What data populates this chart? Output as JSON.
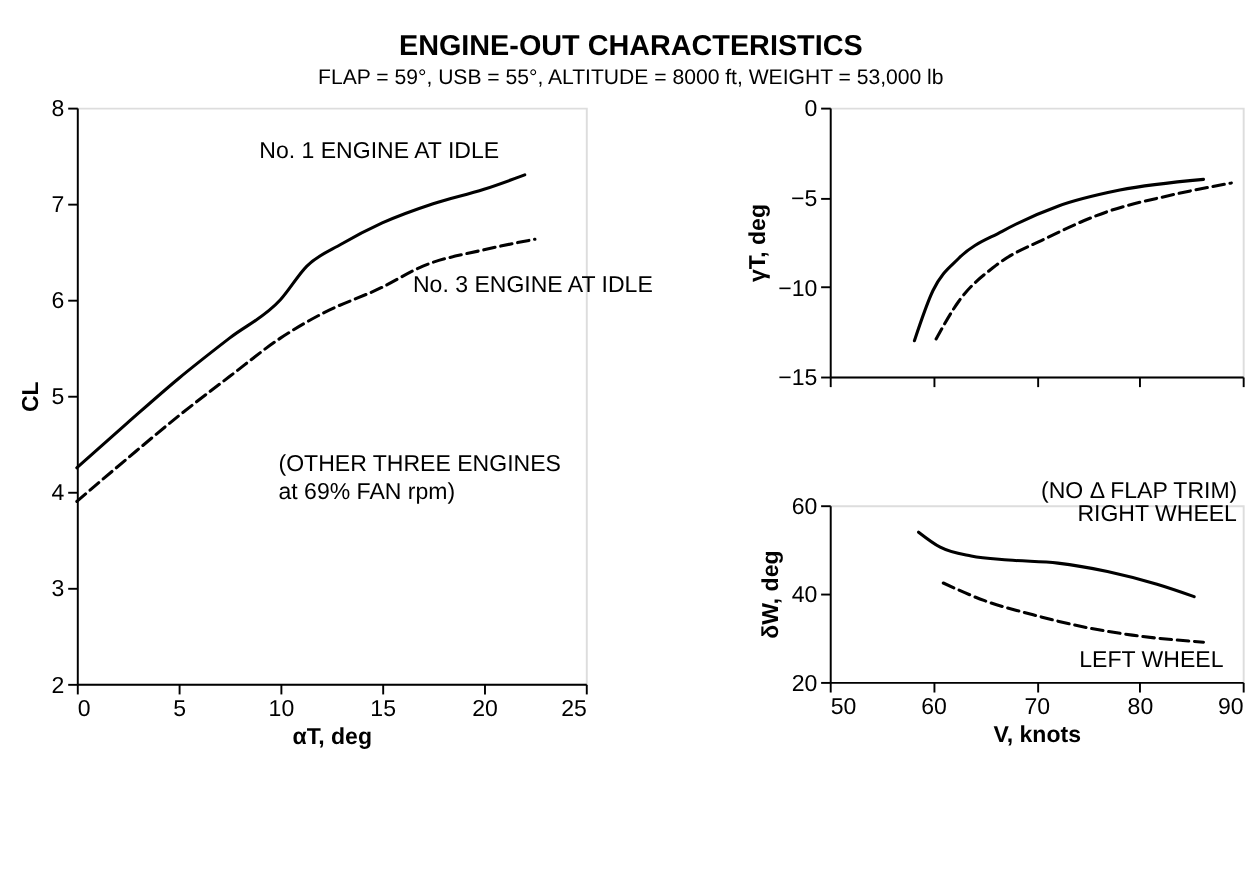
{
  "chart_data": [
    {
      "type": "line",
      "title": "ENGINE-OUT CHARACTERISTICS",
      "subtitle": "FLAP = 59°, USB = 55°, ALTITUDE = 8000 ft, WEIGHT = 53,000 lb",
      "xlabel": "αT, deg",
      "ylabel": "CL",
      "xlim": [
        0,
        25
      ],
      "xticks": [
        0,
        5,
        10,
        15,
        20,
        25
      ],
      "ylim": [
        2,
        8
      ],
      "yticks": [
        2,
        3,
        4,
        5,
        6,
        7,
        8
      ],
      "grid": false,
      "annotations": [
        "(OTHER THREE ENGINES at 69% FAN rpm)"
      ],
      "series": [
        {
          "name": "No. 1 ENGINE AT IDLE",
          "color": "#000000",
          "line_style": "solid",
          "x": [
            0,
            2.5,
            5,
            7.5,
            10,
            11.3,
            13,
            15,
            17.5,
            20,
            22
          ],
          "values": [
            4.25,
            4.72,
            5.18,
            5.6,
            6.0,
            6.35,
            6.58,
            6.8,
            7.0,
            7.15,
            7.3
          ]
        },
        {
          "name": "No. 3 ENGINE AT IDLE",
          "color": "#000000",
          "line_style": "dashed",
          "x": [
            0,
            2.5,
            5,
            7.5,
            10,
            12,
            15,
            17,
            20,
            22.5
          ],
          "values": [
            3.9,
            4.35,
            4.79,
            5.2,
            5.6,
            5.85,
            6.13,
            6.35,
            6.52,
            6.63
          ]
        }
      ]
    },
    {
      "type": "line",
      "ylabel": "γT, deg",
      "xlim": [
        50,
        90
      ],
      "xticks": [
        50,
        60,
        70,
        80,
        90
      ],
      "ylim": [
        -15,
        0
      ],
      "yticks": [
        -15,
        -10,
        -5,
        0
      ],
      "tick_labels": "y",
      "grid": false,
      "series": [
        {
          "color": "#000000",
          "line_style": "solid",
          "x": [
            58.2,
            60,
            62.5,
            66.7,
            72.1,
            78.1,
            86.2
          ],
          "values": [
            -13.0,
            -10.2,
            -8.4,
            -6.9,
            -5.5,
            -4.6,
            -4.0
          ]
        },
        {
          "color": "#000000",
          "line_style": "dashed",
          "x": [
            60.3,
            62.5,
            66.1,
            70.9,
            76.9,
            82.9,
            88.9
          ],
          "values": [
            -12.9,
            -10.8,
            -8.8,
            -7.3,
            -5.8,
            -4.9,
            -4.2
          ]
        }
      ]
    },
    {
      "type": "line",
      "xlabel": "V, knots",
      "ylabel": "δW, deg",
      "xlim": [
        50,
        90
      ],
      "xticks": [
        50,
        60,
        70,
        80,
        90
      ],
      "ylim": [
        20,
        60
      ],
      "yticks": [
        20,
        40,
        60
      ],
      "grid": false,
      "annotations": [
        "(NO Δ FLAP TRIM)"
      ],
      "series": [
        {
          "name": "RIGHT WHEEL",
          "color": "#000000",
          "line_style": "solid",
          "x": [
            58.6,
            60.7,
            63.7,
            67.3,
            72.1,
            76.9,
            81.7,
            85.3
          ],
          "values": [
            53.9,
            50.5,
            48.5,
            47.6,
            46.9,
            45.0,
            42.1,
            39.3
          ]
        },
        {
          "name": "LEFT WHEEL",
          "color": "#000000",
          "line_style": "dashed",
          "x": [
            61,
            65,
            69.7,
            74.5,
            79.3,
            86.2
          ],
          "values": [
            42.4,
            38.4,
            35.2,
            32.5,
            30.6,
            29.0
          ]
        }
      ]
    }
  ]
}
